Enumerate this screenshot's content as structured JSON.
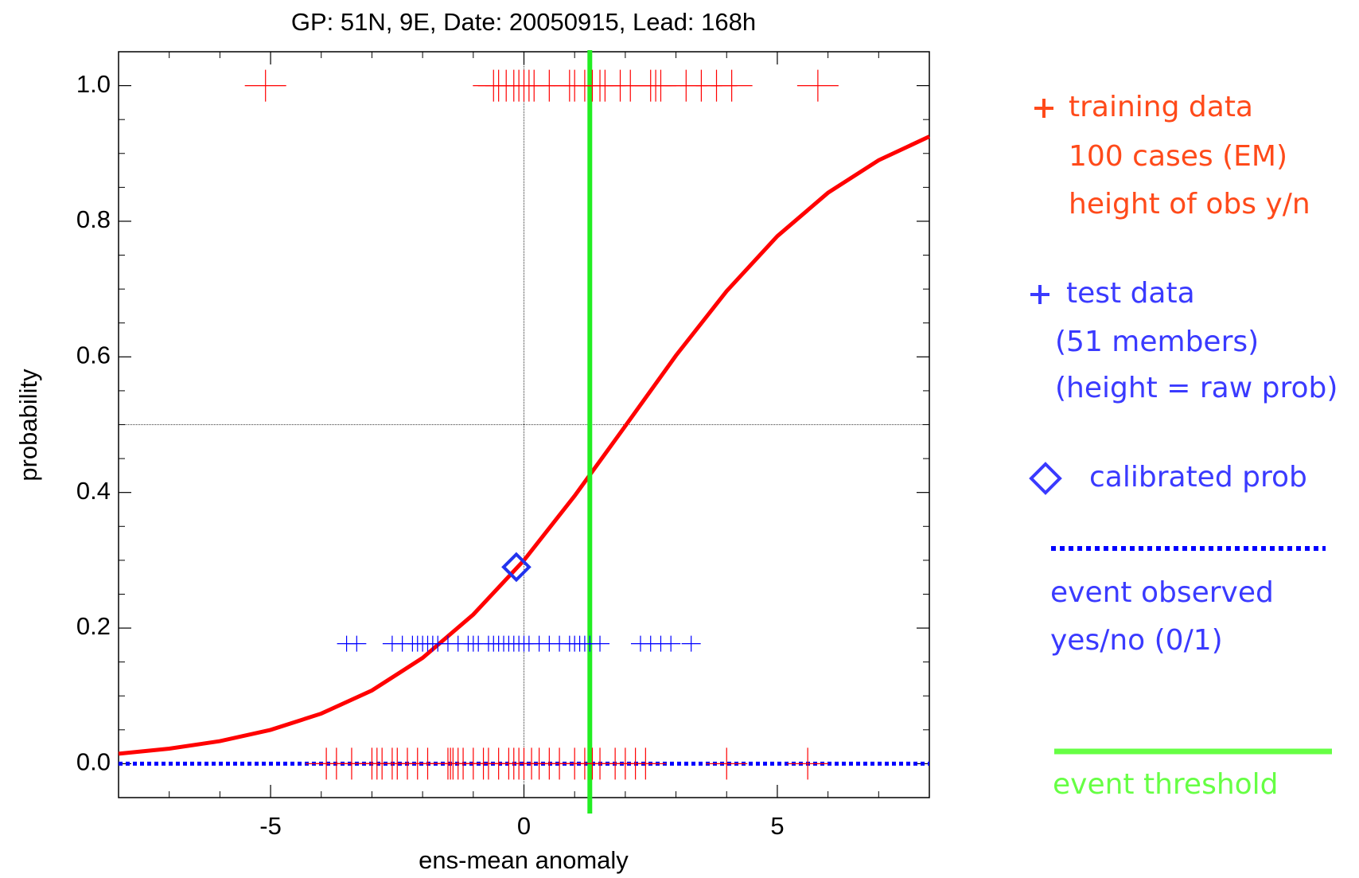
{
  "chart_data": {
    "type": "scatter",
    "title": "GP: 51N, 9E, Date: 20050915, Lead: 168h",
    "xlabel": "ens-mean anomaly",
    "ylabel": "probability",
    "xlim": [
      -8,
      8
    ],
    "ylim": [
      -0.05,
      1.05
    ],
    "xticks": [
      -5,
      0,
      5
    ],
    "yticks": [
      {
        "value": 0,
        "label": "0.0"
      },
      {
        "value": 0.2,
        "label": "0.2"
      },
      {
        "value": 0.4,
        "label": "0.4"
      },
      {
        "value": 0.6,
        "label": "0.6"
      },
      {
        "value": 0.8,
        "label": "0.8"
      },
      {
        "value": 1,
        "label": "1.0"
      }
    ],
    "x_minor_ticks": [
      -7,
      -6,
      -4,
      -3,
      -2,
      -1,
      1,
      2,
      3,
      4,
      6,
      7
    ],
    "y_minor_ticks": [
      0.05,
      0.1,
      0.15,
      0.25,
      0.3,
      0.35,
      0.45,
      0.5,
      0.55,
      0.65,
      0.7,
      0.75,
      0.85,
      0.9,
      0.95
    ],
    "ref_x": 0,
    "ref_y": 0.5,
    "series": [
      {
        "kind": "line",
        "color": "#ff0000",
        "x": [
          -8,
          -7,
          -6,
          -5,
          -4,
          -3,
          -2,
          -1,
          0,
          1,
          2,
          3,
          4,
          5,
          6,
          7,
          8
        ],
        "values": [
          0.0147,
          0.0222,
          0.0333,
          0.0499,
          0.0739,
          0.108,
          0.156,
          0.22,
          0.3,
          0.395,
          0.498,
          0.602,
          0.697,
          0.778,
          0.842,
          0.89,
          0.925
        ]
      },
      {
        "kind": "hline",
        "name": "event observed",
        "legend_lines": [
          "yes/no (0/1)"
        ],
        "color": "#0000ff",
        "legend_color": "#3a3aff",
        "values": [
          0
        ]
      },
      {
        "kind": "vline",
        "name": "event threshold",
        "legend_lines": [],
        "color": "#22ee22",
        "legend_color": "#66ff44",
        "x": [
          1.3
        ]
      },
      {
        "kind": "crosses",
        "name": "training data",
        "legend_lines": [
          "100 cases (EM)",
          "height of obs y/n"
        ],
        "color": "#ff0000",
        "legend_color": "#ff4a1a",
        "x": [
          -5.1,
          -0.6,
          -0.5,
          -0.35,
          -0.2,
          -0.1,
          0.0,
          0.1,
          0.2,
          0.5,
          0.9,
          1.0,
          1.2,
          1.35,
          1.5,
          1.6,
          1.9,
          2.1,
          2.5,
          2.6,
          2.7,
          3.2,
          3.5,
          3.8,
          4.1,
          5.8,
          -3.9,
          -3.7,
          -3.4,
          -3.0,
          -2.9,
          -2.8,
          -2.6,
          -2.5,
          -2.3,
          -2.1,
          -1.9,
          -1.5,
          -1.45,
          -1.4,
          -1.3,
          -1.2,
          -1.0,
          -0.8,
          -0.7,
          -0.5,
          -0.3,
          -0.2,
          -0.1,
          0.0,
          0.15,
          0.3,
          0.5,
          0.7,
          1.0,
          1.2,
          1.35,
          1.5,
          1.8,
          2.0,
          2.2,
          2.4,
          4.0,
          5.6
        ],
        "values": [
          1,
          1,
          1,
          1,
          1,
          1,
          1,
          1,
          1,
          1,
          1,
          1,
          1,
          1,
          1,
          1,
          1,
          1,
          1,
          1,
          1,
          1,
          1,
          1,
          1,
          1,
          0,
          0,
          0,
          0,
          0,
          0,
          0,
          0,
          0,
          0,
          0,
          0,
          0,
          0,
          0,
          0,
          0,
          0,
          0,
          0,
          0,
          0,
          0,
          0,
          0,
          0,
          0,
          0,
          0,
          0,
          0,
          0,
          0,
          0,
          0,
          0,
          0,
          0
        ]
      },
      {
        "kind": "crosses",
        "name": "test data",
        "legend_lines": [
          "(51 members)",
          "(height = raw prob)"
        ],
        "color": "#0000ff",
        "legend_color": "#3a3aff",
        "x": [
          -3.5,
          -3.3,
          -2.6,
          -2.4,
          -2.2,
          -2.1,
          -2.0,
          -1.9,
          -1.8,
          -1.7,
          -1.5,
          -1.3,
          -1.1,
          -1.0,
          -0.9,
          -0.7,
          -0.6,
          -0.5,
          -0.4,
          -0.3,
          -0.2,
          -0.1,
          0.0,
          0.1,
          0.3,
          0.5,
          0.7,
          0.9,
          1.0,
          1.1,
          1.2,
          1.3,
          1.5,
          2.3,
          2.5,
          2.7,
          2.9,
          3.3
        ],
        "values": [
          0.177,
          0.177,
          0.177,
          0.177,
          0.177,
          0.177,
          0.177,
          0.177,
          0.177,
          0.177,
          0.177,
          0.177,
          0.177,
          0.177,
          0.177,
          0.177,
          0.177,
          0.177,
          0.177,
          0.177,
          0.177,
          0.177,
          0.177,
          0.177,
          0.177,
          0.177,
          0.177,
          0.177,
          0.177,
          0.177,
          0.177,
          0.177,
          0.177,
          0.177,
          0.177,
          0.177,
          0.177,
          0.177
        ]
      },
      {
        "kind": "diamond",
        "name": "calibrated prob",
        "legend_lines": [],
        "color": "#2233ee",
        "legend_color": "#3a3aff",
        "x": [
          -0.15
        ],
        "values": [
          0.29
        ]
      }
    ]
  }
}
